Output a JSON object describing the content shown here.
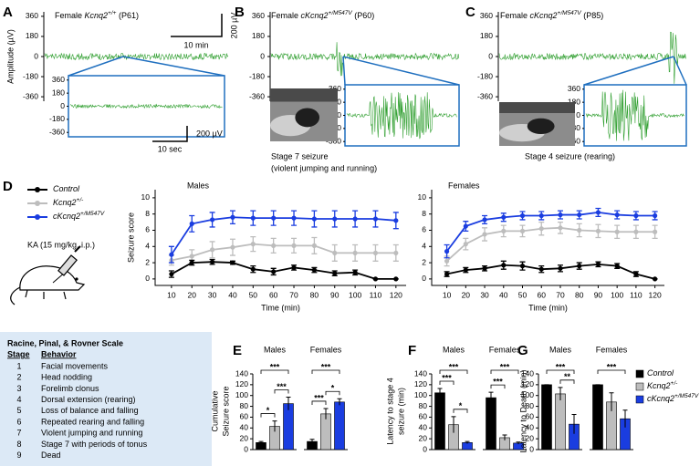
{
  "genotypes": [
    {
      "text": "Control",
      "color": "#000000"
    },
    {
      "text": "Kcnq2",
      "sup": "+/-",
      "color": "#bdbdbd"
    },
    {
      "text": "cKcnq2",
      "sup": "+/M547V",
      "color": "#1a3de0"
    }
  ],
  "eeg": [
    {
      "letter": "A",
      "title": {
        "pre": "Female ",
        "gene": "Kcnq2",
        "sup": "+/+",
        "post": " (P61)"
      },
      "y_label": "Amplitude (µV)",
      "ylim": [
        -400,
        400
      ],
      "yticks": [
        360,
        180,
        0,
        -180,
        -360
      ],
      "inset_ylim": [
        -420,
        420
      ],
      "inset_yticks": [
        360,
        180,
        0,
        -180,
        -360
      ],
      "scale_bars": [
        "200 µV",
        "10 min"
      ],
      "inset_scale_bars": [
        "200 µV",
        "10 sec"
      ]
    },
    {
      "letter": "B",
      "title": {
        "pre": "Female ",
        "gene": "cKcnq2",
        "sup": "+/M547V",
        "post": " (P60)"
      },
      "ylim": [
        -400,
        400
      ],
      "yticks": [
        360,
        180,
        0,
        -180,
        -360
      ],
      "inset_ylim": [
        -420,
        420
      ],
      "inset_yticks": [
        360,
        180,
        0,
        -180,
        -360
      ],
      "caption": [
        "Stage 7 seizure",
        "(violent jumping and running)"
      ]
    },
    {
      "letter": "C",
      "title": {
        "pre": "Female ",
        "gene": "cKcnq2",
        "sup": "+/M547V",
        "post": " (P85)"
      },
      "ylim": [
        -400,
        400
      ],
      "yticks": [
        360,
        180,
        0,
        -180,
        -360
      ],
      "inset_ylim": [
        -420,
        420
      ],
      "inset_yticks": [
        360,
        180,
        0,
        -180,
        -360
      ],
      "caption": [
        "Stage 4 seizure (rearing)"
      ]
    }
  ],
  "seizure_course": {
    "letter": "D",
    "injection": "KA (15 mg/kg, i.p.)",
    "y_label": "Seizure score",
    "x_label": "Time (min)",
    "x": [
      10,
      20,
      30,
      40,
      50,
      60,
      70,
      80,
      90,
      100,
      110,
      120
    ],
    "xlim": [
      2,
      125
    ],
    "xticks": [
      10,
      20,
      30,
      40,
      50,
      60,
      70,
      80,
      90,
      100,
      110,
      120
    ],
    "ylim": [
      -0.8,
      11
    ],
    "yticks": [
      0,
      2,
      4,
      6,
      8,
      10
    ],
    "panels": [
      {
        "title": "Males",
        "series": [
          {
            "values": [
              0.6,
              2.0,
              2.1,
              2.0,
              1.2,
              0.9,
              1.4,
              1.1,
              0.7,
              0.8,
              0,
              0
            ],
            "errors": [
              0.4,
              0.3,
              0.3,
              0.2,
              0.4,
              0.4,
              0.3,
              0.3,
              0.3,
              0.3,
              0,
              0
            ]
          },
          {
            "values": [
              2.3,
              2.8,
              3.6,
              3.9,
              4.3,
              4.1,
              4.1,
              4.1,
              3.2,
              3.2,
              3.2,
              3.2
            ],
            "errors": [
              0.6,
              0.8,
              1.0,
              1.0,
              0.9,
              0.9,
              0.9,
              1.0,
              1.0,
              1.0,
              1.0,
              1.0
            ]
          },
          {
            "values": [
              3.0,
              6.8,
              7.3,
              7.6,
              7.5,
              7.5,
              7.5,
              7.4,
              7.4,
              7.4,
              7.4,
              7.2
            ],
            "errors": [
              1.0,
              1.0,
              0.9,
              0.8,
              0.9,
              0.9,
              0.9,
              1.0,
              1.0,
              1.0,
              1.0,
              1.0
            ]
          }
        ]
      },
      {
        "title": "Females",
        "series": [
          {
            "values": [
              0.6,
              1.1,
              1.3,
              1.7,
              1.6,
              1.2,
              1.3,
              1.6,
              1.8,
              1.6,
              0.6,
              0
            ],
            "errors": [
              0.3,
              0.3,
              0.3,
              0.5,
              0.5,
              0.4,
              0.4,
              0.4,
              0.3,
              0.3,
              0.3,
              0
            ]
          },
          {
            "values": [
              2.2,
              4.3,
              5.5,
              5.9,
              5.9,
              6.2,
              6.3,
              6.0,
              5.9,
              5.8,
              5.8,
              5.8
            ],
            "errors": [
              0.6,
              0.7,
              0.8,
              0.7,
              0.7,
              0.8,
              0.7,
              0.8,
              0.8,
              0.8,
              0.8,
              0.8
            ]
          },
          {
            "values": [
              3.4,
              6.5,
              7.3,
              7.6,
              7.8,
              7.8,
              7.9,
              7.9,
              8.2,
              7.9,
              7.8,
              7.8
            ],
            "errors": [
              0.8,
              0.6,
              0.5,
              0.5,
              0.5,
              0.5,
              0.5,
              0.5,
              0.5,
              0.5,
              0.5,
              0.5
            ]
          }
        ]
      }
    ]
  },
  "scale_table": {
    "title": "Racine, Pinal, & Rovner Scale",
    "headers": [
      "Stage",
      "Behavior"
    ],
    "rows": [
      [
        1,
        "Facial movements"
      ],
      [
        2,
        "Head nodding"
      ],
      [
        3,
        "Forelimb clonus"
      ],
      [
        4,
        "Dorsal extension (rearing)"
      ],
      [
        5,
        "Loss of balance and falling"
      ],
      [
        6,
        "Repeated rearing and falling"
      ],
      [
        7,
        "Violent jumping and running"
      ],
      [
        8,
        "Stage 7 with periods of tonus"
      ],
      [
        9,
        "Dead"
      ]
    ]
  },
  "bar_charts": [
    {
      "letter": "E",
      "y_label": [
        "Cumulative",
        "Seizure score"
      ],
      "ylim": [
        0,
        140
      ],
      "yticks": [
        0,
        20,
        40,
        60,
        80,
        100,
        120,
        140
      ],
      "groups": [
        {
          "title": "Males",
          "values": [
            13,
            43,
            85
          ],
          "errors": [
            2,
            10,
            12
          ],
          "brackets": [
            {
              "bars": [
                0,
                2
              ],
              "label": "***"
            },
            {
              "bars": [
                0,
                1
              ],
              "label": "*"
            },
            {
              "bars": [
                1,
                2
              ],
              "label": "***"
            }
          ]
        },
        {
          "title": "Females",
          "values": [
            15,
            66,
            88
          ],
          "errors": [
            4,
            10,
            6
          ],
          "brackets": [
            {
              "bars": [
                0,
                2
              ],
              "label": "***"
            },
            {
              "bars": [
                0,
                1
              ],
              "label": "***"
            },
            {
              "bars": [
                1,
                2
              ],
              "label": "*"
            }
          ]
        }
      ]
    },
    {
      "letter": "F",
      "y_label": [
        "Latency to stage 4",
        "seizure (min)"
      ],
      "ylim": [
        0,
        140
      ],
      "yticks": [
        0,
        20,
        40,
        60,
        80,
        100,
        120,
        140
      ],
      "groups": [
        {
          "title": "Males",
          "values": [
            105,
            46,
            13
          ],
          "errors": [
            8,
            15,
            2
          ],
          "brackets": [
            {
              "bars": [
                0,
                2
              ],
              "label": "***"
            },
            {
              "bars": [
                0,
                1
              ],
              "label": "***"
            },
            {
              "bars": [
                1,
                2
              ],
              "label": "*"
            }
          ]
        },
        {
          "title": "Females",
          "values": [
            96,
            22,
            12
          ],
          "errors": [
            10,
            5,
            2
          ],
          "brackets": [
            {
              "bars": [
                0,
                2
              ],
              "label": "***"
            },
            {
              "bars": [
                0,
                1
              ],
              "label": "***"
            }
          ]
        }
      ]
    },
    {
      "letter": "G",
      "y_label": [
        "Latency to Death (min)"
      ],
      "ylim": [
        0,
        140
      ],
      "yticks": [
        0,
        20,
        40,
        60,
        80,
        100,
        120,
        140
      ],
      "groups": [
        {
          "title": "Males",
          "values": [
            120,
            103,
            47
          ],
          "errors": [
            0,
            12,
            18
          ],
          "brackets": [
            {
              "bars": [
                0,
                2
              ],
              "label": "***"
            },
            {
              "bars": [
                1,
                2
              ],
              "label": "**"
            }
          ]
        },
        {
          "title": "Females",
          "values": [
            120,
            88,
            57
          ],
          "errors": [
            0,
            17,
            16
          ],
          "brackets": [
            {
              "bars": [
                0,
                2
              ],
              "label": "***"
            }
          ]
        }
      ]
    }
  ]
}
